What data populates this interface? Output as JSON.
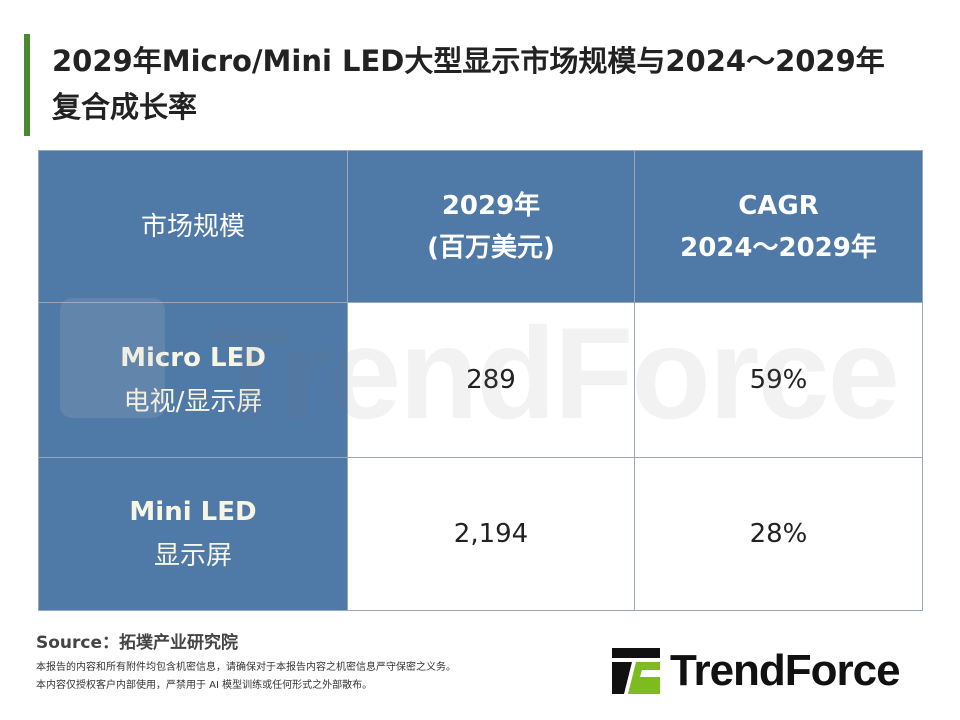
{
  "title": "2029年Micro/Mini LED大型显示市场规模与2024～2029年复合成长率",
  "table": {
    "headers": [
      "市场规模",
      "2029年",
      "(百万美元)",
      "CAGR",
      "2024～2029年"
    ],
    "rows": [
      {
        "label_en": "Micro LED",
        "label_cn": "电视/显示屏",
        "value": "289",
        "cagr": "59%"
      },
      {
        "label_en": "Mini LED",
        "label_cn": "显示屏",
        "value": "2,194",
        "cagr": "28%"
      }
    ],
    "header_color": "#4f79a6"
  },
  "watermark": "TrendForce",
  "footer": {
    "source": "Source：拓墣产业研究院",
    "disclaimer1": "本报告的内容和所有附件均包含机密信息，请确保对于本报告内容之机密信息严守保密之义务。",
    "disclaimer2": "本内容仅授权客户内部使用，严禁用于 AI 模型训练或任何形式之外部散布。"
  },
  "logo": {
    "text": "TrendForce",
    "accent": "#7dbb1e"
  }
}
